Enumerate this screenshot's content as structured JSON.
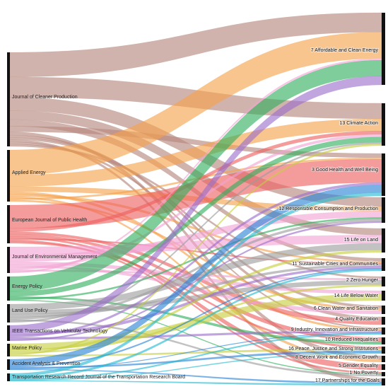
{
  "diagram": {
    "type": "sankey",
    "left_nodes": [
      {
        "id": "jcp",
        "label": "Journal of Cleaner Production",
        "color": "#b5857a"
      },
      {
        "id": "ae",
        "label": "Applied Energy",
        "color": "#f5a24a"
      },
      {
        "id": "ejph",
        "label": "European Journal of Public Health",
        "color": "#ee6060"
      },
      {
        "id": "jem",
        "label": "Journal of Environmental Management",
        "color": "#f2a3d4"
      },
      {
        "id": "ep",
        "label": "Energy Policy",
        "color": "#2fae5c"
      },
      {
        "id": "lup",
        "label": "Land Use Policy",
        "color": "#9c9c9c"
      },
      {
        "id": "ieee",
        "label": "IEEE Transactions on Vehicular Technology",
        "color": "#9b6ec9"
      },
      {
        "id": "mp",
        "label": "Marine Policy",
        "color": "#c7cf3f"
      },
      {
        "id": "aap",
        "label": "Accident Analysis & Prevention",
        "color": "#2a83d6"
      },
      {
        "id": "trr",
        "label": "Transportation Research Record Journal of the Transportation Research Board",
        "color": "#25b9d1"
      }
    ],
    "right_nodes": [
      {
        "id": "sdg7",
        "label": "7 Affordable and Clean Energy"
      },
      {
        "id": "sdg13",
        "label": "13 Climate Action"
      },
      {
        "id": "sdg3",
        "label": "3 Good Health and Well Being"
      },
      {
        "id": "sdg12",
        "label": "12 Responsible Consumption and Production"
      },
      {
        "id": "sdg15",
        "label": "15 Life on Land"
      },
      {
        "id": "sdg11",
        "label": "11 Sustainable Cities and Communities"
      },
      {
        "id": "sdg2",
        "label": "2 Zero Hunger"
      },
      {
        "id": "sdg14",
        "label": "14 Life Below Water"
      },
      {
        "id": "sdg6",
        "label": "6 Clean Water and Sanitation"
      },
      {
        "id": "sdg4",
        "label": "4 Quality Education"
      },
      {
        "id": "sdg9",
        "label": "9 Industry, Innovation and Infrastructure"
      },
      {
        "id": "sdg10",
        "label": "10 Reduced Inequalities"
      },
      {
        "id": "sdg16",
        "label": "16 Peace, Justice and Strong Institutions"
      },
      {
        "id": "sdg8",
        "label": "8 Decent Work and Economic Growth"
      },
      {
        "id": "sdg5",
        "label": "5 Gender Equality"
      },
      {
        "id": "sdg1",
        "label": "1 No Poverty"
      },
      {
        "id": "sdg17",
        "label": "17 Partnerships for the Goals"
      }
    ]
  }
}
